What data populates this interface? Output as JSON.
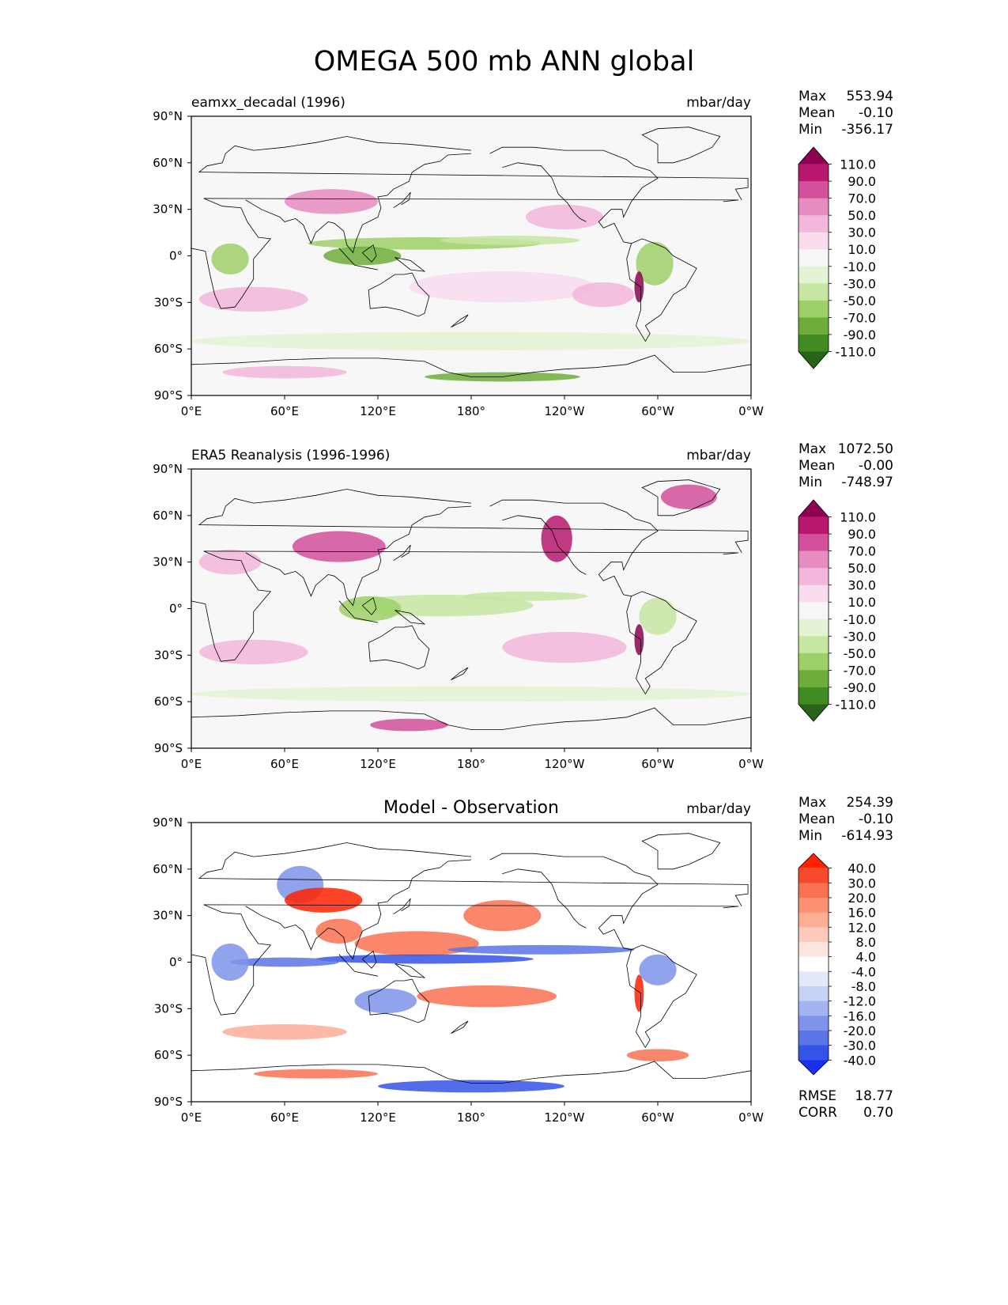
{
  "figure": {
    "title": "OMEGA 500 mb ANN global"
  },
  "chart_data": [
    {
      "type": "heatmap",
      "title_left": "eamxx_decadal (1996)",
      "title_center": "",
      "units": "mbar/day",
      "yticks": [
        "90°N",
        "60°N",
        "30°N",
        "0°",
        "30°S",
        "60°S",
        "90°S"
      ],
      "xticks": [
        "0°E",
        "60°E",
        "120°E",
        "180°",
        "120°W",
        "60°W",
        "0°W"
      ],
      "stats": [
        {
          "label": "Max",
          "value": "553.94"
        },
        {
          "label": "Mean",
          "value": "-0.10"
        },
        {
          "label": "Min",
          "value": "-356.17"
        }
      ],
      "extra_stats": [],
      "colorbar": {
        "labels": [
          "110.0",
          "90.0",
          "70.0",
          "50.0",
          "30.0",
          "10.0",
          "-10.0",
          "-30.0",
          "-50.0",
          "-70.0",
          "-90.0",
          "-110.0"
        ],
        "colors": [
          "#8e0152",
          "#b9176e",
          "#d2509a",
          "#e78cc0",
          "#f2b7da",
          "#f9dcee",
          "#f7f7f7",
          "#e4f3d4",
          "#c7e6a2",
          "#9ed069",
          "#6ead3a",
          "#428b22",
          "#276419"
        ]
      },
      "bg": "#f7f7f7",
      "blobs": [
        {
          "lon": 150,
          "lat": 8,
          "rx": 75,
          "ry": 4,
          "color": "#9ed069"
        },
        {
          "lon": 205,
          "lat": 10,
          "rx": 45,
          "ry": 3,
          "color": "#c7e6a2"
        },
        {
          "lon": 110,
          "lat": 0,
          "rx": 25,
          "ry": 6,
          "color": "#6ead3a"
        },
        {
          "lon": 25,
          "lat": -2,
          "rx": 12,
          "ry": 10,
          "color": "#9ed069"
        },
        {
          "lon": 298,
          "lat": -5,
          "rx": 12,
          "ry": 14,
          "color": "#9ed069"
        },
        {
          "lon": 288,
          "lat": -20,
          "rx": 3,
          "ry": 10,
          "color": "#8e0152"
        },
        {
          "lon": 90,
          "lat": 35,
          "rx": 30,
          "ry": 8,
          "color": "#e78cc0"
        },
        {
          "lon": 240,
          "lat": 25,
          "rx": 25,
          "ry": 8,
          "color": "#f2b7da"
        },
        {
          "lon": 40,
          "lat": -28,
          "rx": 35,
          "ry": 8,
          "color": "#f2b7da"
        },
        {
          "lon": 200,
          "lat": -20,
          "rx": 60,
          "ry": 10,
          "color": "#f9dcee"
        },
        {
          "lon": 265,
          "lat": -25,
          "rx": 20,
          "ry": 8,
          "color": "#f2b7da"
        },
        {
          "lon": 180,
          "lat": -55,
          "rx": 180,
          "ry": 6,
          "color": "#e4f3d4"
        },
        {
          "lon": 200,
          "lat": -78,
          "rx": 50,
          "ry": 3,
          "color": "#6ead3a"
        },
        {
          "lon": 60,
          "lat": -75,
          "rx": 40,
          "ry": 4,
          "color": "#f2b7da"
        }
      ]
    },
    {
      "type": "heatmap",
      "title_left": "ERA5 Reanalysis (1996-1996)",
      "title_center": "",
      "units": "mbar/day",
      "yticks": [
        "90°N",
        "60°N",
        "30°N",
        "0°",
        "30°S",
        "60°S",
        "90°S"
      ],
      "xticks": [
        "0°E",
        "60°E",
        "120°E",
        "180°",
        "120°W",
        "60°W",
        "0°W"
      ],
      "stats": [
        {
          "label": "Max",
          "value": "1072.50"
        },
        {
          "label": "Mean",
          "value": "-0.00"
        },
        {
          "label": "Min",
          "value": "-748.97"
        }
      ],
      "extra_stats": [],
      "colorbar": {
        "labels": [
          "110.0",
          "90.0",
          "70.0",
          "50.0",
          "30.0",
          "10.0",
          "-10.0",
          "-30.0",
          "-50.0",
          "-70.0",
          "-90.0",
          "-110.0"
        ],
        "colors": [
          "#8e0152",
          "#b9176e",
          "#d2509a",
          "#e78cc0",
          "#f2b7da",
          "#f9dcee",
          "#f7f7f7",
          "#e4f3d4",
          "#c7e6a2",
          "#9ed069",
          "#6ead3a",
          "#428b22",
          "#276419"
        ]
      },
      "bg": "#f7f7f7",
      "blobs": [
        {
          "lon": 160,
          "lat": 2,
          "rx": 60,
          "ry": 7,
          "color": "#c7e6a2"
        },
        {
          "lon": 115,
          "lat": 0,
          "rx": 20,
          "ry": 8,
          "color": "#9ed069"
        },
        {
          "lon": 215,
          "lat": 8,
          "rx": 40,
          "ry": 3,
          "color": "#c7e6a2"
        },
        {
          "lon": 300,
          "lat": -5,
          "rx": 12,
          "ry": 12,
          "color": "#c7e6a2"
        },
        {
          "lon": 95,
          "lat": 40,
          "rx": 30,
          "ry": 10,
          "color": "#d2509a"
        },
        {
          "lon": 25,
          "lat": 30,
          "rx": 20,
          "ry": 8,
          "color": "#f2b7da"
        },
        {
          "lon": 235,
          "lat": 45,
          "rx": 10,
          "ry": 15,
          "color": "#b9176e"
        },
        {
          "lon": 320,
          "lat": 72,
          "rx": 18,
          "ry": 8,
          "color": "#d2509a"
        },
        {
          "lon": 40,
          "lat": -28,
          "rx": 35,
          "ry": 8,
          "color": "#f2b7da"
        },
        {
          "lon": 240,
          "lat": -25,
          "rx": 40,
          "ry": 10,
          "color": "#f2b7da"
        },
        {
          "lon": 288,
          "lat": -20,
          "rx": 3,
          "ry": 10,
          "color": "#8e0152"
        },
        {
          "lon": 140,
          "lat": -75,
          "rx": 25,
          "ry": 4,
          "color": "#d2509a"
        },
        {
          "lon": 180,
          "lat": -55,
          "rx": 180,
          "ry": 5,
          "color": "#e4f3d4"
        }
      ]
    },
    {
      "type": "heatmap",
      "title_left": "",
      "title_center": "Model - Observation",
      "units": "mbar/day",
      "yticks": [
        "90°N",
        "60°N",
        "30°N",
        "0°",
        "30°S",
        "60°S",
        "90°S"
      ],
      "xticks": [
        "0°E",
        "60°E",
        "120°E",
        "180°",
        "120°W",
        "60°W",
        "0°W"
      ],
      "stats": [
        {
          "label": "Max",
          "value": "254.39"
        },
        {
          "label": "Mean",
          "value": "-0.10"
        },
        {
          "label": "Min",
          "value": "-614.93"
        }
      ],
      "extra_stats": [
        {
          "label": "RMSE",
          "value": "18.77"
        },
        {
          "label": "CORR",
          "value": "0.70"
        }
      ],
      "colorbar": {
        "labels": [
          "40.0",
          "30.0",
          "20.0",
          "16.0",
          "12.0",
          "8.0",
          "4.0",
          "-4.0",
          "-8.0",
          "-12.0",
          "-16.0",
          "-20.0",
          "-30.0",
          "-40.0"
        ],
        "colors": [
          "#ff2200",
          "#f64a2d",
          "#f97252",
          "#fb9072",
          "#fcae97",
          "#fdcbbb",
          "#fde6dd",
          "#ffffff",
          "#e3e8fa",
          "#c8d2f6",
          "#a4b4f0",
          "#7f93ea",
          "#5a74e6",
          "#3553e6",
          "#1a2ff2"
        ]
      },
      "bg": "#ffffff",
      "blobs": [
        {
          "lon": 145,
          "lat": 12,
          "rx": 40,
          "ry": 8,
          "color": "#f97252"
        },
        {
          "lon": 95,
          "lat": 20,
          "rx": 15,
          "ry": 8,
          "color": "#f97252"
        },
        {
          "lon": 200,
          "lat": 30,
          "rx": 25,
          "ry": 10,
          "color": "#f97252"
        },
        {
          "lon": 190,
          "lat": -22,
          "rx": 45,
          "ry": 7,
          "color": "#f97252"
        },
        {
          "lon": 150,
          "lat": 2,
          "rx": 70,
          "ry": 3,
          "color": "#3553e6"
        },
        {
          "lon": 60,
          "lat": 0,
          "rx": 35,
          "ry": 3,
          "color": "#5a74e6"
        },
        {
          "lon": 25,
          "lat": 0,
          "rx": 12,
          "ry": 12,
          "color": "#7f93ea"
        },
        {
          "lon": 125,
          "lat": -25,
          "rx": 20,
          "ry": 8,
          "color": "#7f93ea"
        },
        {
          "lon": 70,
          "lat": 50,
          "rx": 15,
          "ry": 12,
          "color": "#7f93ea"
        },
        {
          "lon": 85,
          "lat": 40,
          "rx": 25,
          "ry": 8,
          "color": "#ff2200"
        },
        {
          "lon": 225,
          "lat": 8,
          "rx": 60,
          "ry": 3,
          "color": "#5a74e6"
        },
        {
          "lon": 288,
          "lat": -20,
          "rx": 3,
          "ry": 12,
          "color": "#ff2200"
        },
        {
          "lon": 300,
          "lat": -5,
          "rx": 12,
          "ry": 10,
          "color": "#7f93ea"
        },
        {
          "lon": 60,
          "lat": -45,
          "rx": 40,
          "ry": 5,
          "color": "#fcae97"
        },
        {
          "lon": 180,
          "lat": -80,
          "rx": 60,
          "ry": 4,
          "color": "#3553e6"
        },
        {
          "lon": 80,
          "lat": -72,
          "rx": 40,
          "ry": 3,
          "color": "#f97252"
        },
        {
          "lon": 300,
          "lat": -60,
          "rx": 20,
          "ry": 4,
          "color": "#f97252"
        }
      ]
    }
  ]
}
